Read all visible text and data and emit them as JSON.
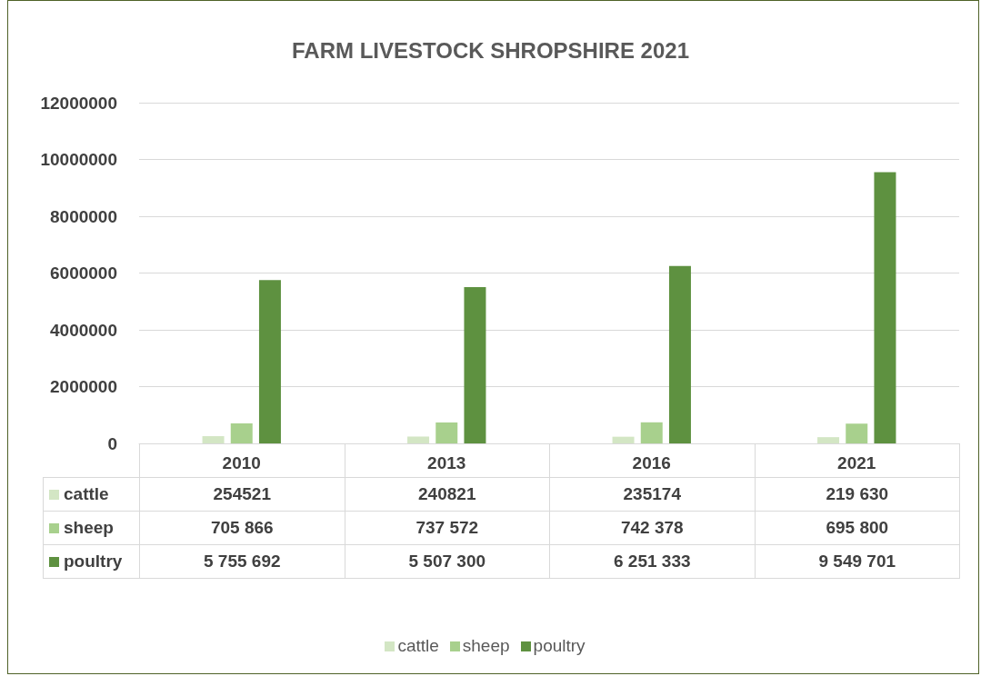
{
  "chart_data": {
    "type": "bar",
    "title": "FARM LIVESTOCK SHROPSHIRE 2021",
    "categories": [
      "2010",
      "2013",
      "2016",
      "2021"
    ],
    "series": [
      {
        "name": "cattle",
        "color": "#d3e6c4",
        "values": [
          254521,
          240821,
          235174,
          219630
        ],
        "value_labels": [
          "254521",
          "240821",
          "235174",
          "219 630"
        ]
      },
      {
        "name": "sheep",
        "color": "#a8d08d",
        "values": [
          705866,
          737572,
          742378,
          695800
        ],
        "value_labels": [
          "705 866",
          "737 572",
          "742 378",
          "695 800"
        ]
      },
      {
        "name": "poultry",
        "color": "#5e9140",
        "values": [
          5755692,
          5507300,
          6251333,
          9549701
        ],
        "value_labels": [
          "5 755 692",
          "5 507 300",
          "6 251 333",
          "9 549 701"
        ]
      }
    ],
    "ylim": [
      0,
      12000000
    ],
    "yticks": [
      0,
      2000000,
      4000000,
      6000000,
      8000000,
      10000000,
      12000000
    ],
    "grid": "y",
    "legend": "bottom"
  }
}
